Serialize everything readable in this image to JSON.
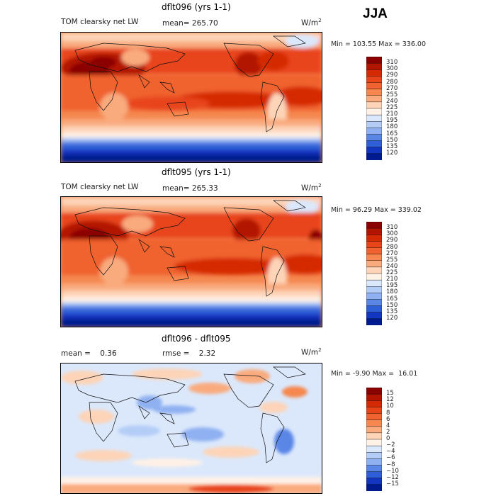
{
  "season": "JJA",
  "panels": [
    {
      "title": "dflt096 (yrs 1-1)",
      "variable": "TOM clearsky net LW",
      "stat": "mean= 265.70",
      "units": "W/m",
      "units_sup": "2",
      "minmax": "Min = 103.55 Max = 336.00",
      "colorbar_labels": [
        "310",
        "300",
        "290",
        "280",
        "270",
        "255",
        "240",
        "225",
        "210",
        "195",
        "180",
        "165",
        "150",
        "135",
        "120"
      ],
      "colors": [
        "#8b0000",
        "#b31400",
        "#d52b05",
        "#e8441a",
        "#f0622f",
        "#f5874f",
        "#f9ab7e",
        "#fdd4b8",
        "#fff1e6",
        "#dbe8fb",
        "#b4cdf7",
        "#8fb0f1",
        "#5a86e6",
        "#2f5fd7",
        "#1236c0",
        "#001a8f"
      ]
    },
    {
      "title": "dflt095 (yrs 1-1)",
      "variable": "TOM clearsky net LW",
      "stat": "mean= 265.33",
      "units": "W/m",
      "units_sup": "2",
      "minmax": "Min = 96.29 Max = 339.02",
      "colorbar_labels": [
        "310",
        "300",
        "290",
        "280",
        "270",
        "255",
        "240",
        "225",
        "210",
        "195",
        "180",
        "165",
        "150",
        "135",
        "120"
      ],
      "colors": [
        "#8b0000",
        "#b31400",
        "#d52b05",
        "#e8441a",
        "#f0622f",
        "#f5874f",
        "#f9ab7e",
        "#fdd4b8",
        "#fff1e6",
        "#dbe8fb",
        "#b4cdf7",
        "#8fb0f1",
        "#5a86e6",
        "#2f5fd7",
        "#1236c0",
        "#001a8f"
      ]
    },
    {
      "title": "dflt096 - dflt095",
      "variable": "mean =    0.36",
      "stat": "rmse =    2.32",
      "units": "W/m",
      "units_sup": "2",
      "minmax": "Min = -9.90 Max =  16.01",
      "colorbar_labels": [
        "15",
        "12",
        "10",
        "8",
        "6",
        "4",
        "2",
        "0",
        "−2",
        "−4",
        "−6",
        "−8",
        "−10",
        "−12",
        "−15"
      ],
      "colors": [
        "#8b0000",
        "#b31400",
        "#d52b05",
        "#e8441a",
        "#f0622f",
        "#f5874f",
        "#f9ab7e",
        "#fdd4b8",
        "#fff1e6",
        "#dbe8fb",
        "#b4cdf7",
        "#8fb0f1",
        "#5a86e6",
        "#2f5fd7",
        "#1236c0",
        "#001a8f"
      ]
    }
  ]
}
